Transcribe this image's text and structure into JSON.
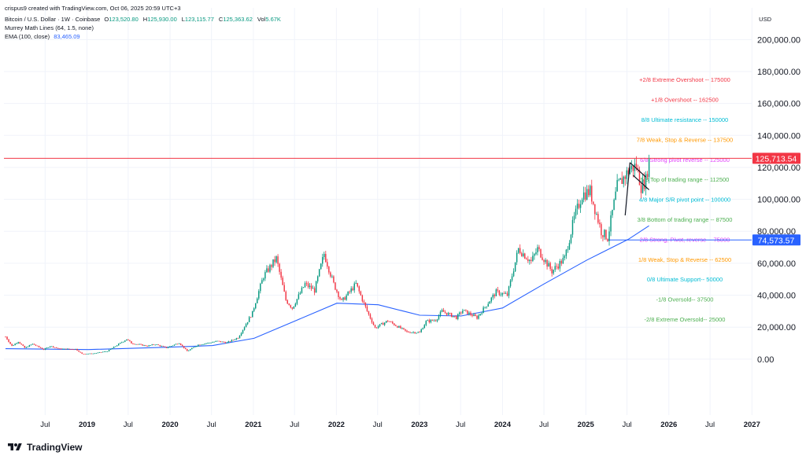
{
  "header": {
    "credit": "crispus9 created with TradingView.com, Oct 06, 2025 20:59 UTC+3",
    "symbol": "Bitcoin / U.S. Dollar · 1W · Coinbase",
    "ohlc": [
      {
        "label": "O",
        "value": "123,520.80"
      },
      {
        "label": "H",
        "value": "125,930.00"
      },
      {
        "label": "L",
        "value": "123,115.77"
      },
      {
        "label": "C",
        "value": "125,363.62"
      },
      {
        "label": "Vol",
        "value": "5.67K"
      }
    ],
    "murrey": "Murrey Math Lines (64, 1.5, none)",
    "ema_label": "EMA (100, close)",
    "ema_value": "83,465.09"
  },
  "currency": "USD",
  "brand": {
    "name": "TradingView"
  },
  "colors": {
    "up": "#089981",
    "down": "#f23645",
    "ema": "#2962ff",
    "resistance_line": "#f23645",
    "support_line": "#2962ff",
    "price_tag_red": "#f23645",
    "price_tag_blue": "#2962ff"
  },
  "chart_data": {
    "type": "candlestick",
    "title": "Bitcoin / U.S. Dollar · 1W · Coinbase",
    "xlim": [
      "2018-01-01",
      "2026-12-31"
    ],
    "ylim": [
      -35000,
      210000
    ],
    "y_ticks": [
      {
        "value": 0,
        "label": "0.00"
      },
      {
        "value": 20000,
        "label": "20,000.00"
      },
      {
        "value": 40000,
        "label": "40,000.00"
      },
      {
        "value": 60000,
        "label": "60,000.00"
      },
      {
        "value": 80000,
        "label": "80,000.00"
      },
      {
        "value": 100000,
        "label": "100,000.00"
      },
      {
        "value": 120000,
        "label": "120,000.00"
      },
      {
        "value": 140000,
        "label": "140,000.00"
      },
      {
        "value": 160000,
        "label": "160,000.00"
      },
      {
        "value": 180000,
        "label": "180,000.00"
      },
      {
        "value": 200000,
        "label": "200,000.00"
      }
    ],
    "x_ticks": [
      {
        "date": "2018-07-01",
        "label": "Jul",
        "bold": false
      },
      {
        "date": "2019-01-01",
        "label": "2019",
        "bold": true
      },
      {
        "date": "2019-07-01",
        "label": "Jul",
        "bold": false
      },
      {
        "date": "2020-01-01",
        "label": "2020",
        "bold": true
      },
      {
        "date": "2020-07-01",
        "label": "Jul",
        "bold": false
      },
      {
        "date": "2021-01-01",
        "label": "2021",
        "bold": true
      },
      {
        "date": "2021-07-01",
        "label": "Jul",
        "bold": false
      },
      {
        "date": "2022-01-01",
        "label": "2022",
        "bold": true
      },
      {
        "date": "2022-07-01",
        "label": "Jul",
        "bold": false
      },
      {
        "date": "2023-01-01",
        "label": "2023",
        "bold": true
      },
      {
        "date": "2023-07-01",
        "label": "Jul",
        "bold": false
      },
      {
        "date": "2024-01-01",
        "label": "2024",
        "bold": true
      },
      {
        "date": "2024-07-01",
        "label": "Jul",
        "bold": false
      },
      {
        "date": "2025-01-01",
        "label": "2025",
        "bold": true
      },
      {
        "date": "2025-07-01",
        "label": "Jul",
        "bold": false
      },
      {
        "date": "2026-01-01",
        "label": "2026",
        "bold": true
      },
      {
        "date": "2026-07-01",
        "label": "Jul",
        "bold": false
      },
      {
        "date": "2027-01-01",
        "label": "2027",
        "bold": true
      }
    ],
    "price_path": [
      [
        "2018-01-08",
        14000
      ],
      [
        "2018-02-05",
        8200
      ],
      [
        "2018-03-05",
        11000
      ],
      [
        "2018-04-02",
        7000
      ],
      [
        "2018-05-07",
        9500
      ],
      [
        "2018-06-25",
        6000
      ],
      [
        "2018-07-23",
        8200
      ],
      [
        "2018-09-03",
        6400
      ],
      [
        "2018-11-12",
        6300
      ],
      [
        "2018-12-10",
        3300
      ],
      [
        "2019-01-28",
        3500
      ],
      [
        "2019-04-01",
        5000
      ],
      [
        "2019-06-24",
        12500
      ],
      [
        "2019-07-15",
        10000
      ],
      [
        "2019-09-23",
        8200
      ],
      [
        "2019-10-28",
        9300
      ],
      [
        "2019-12-16",
        7100
      ],
      [
        "2020-02-10",
        10200
      ],
      [
        "2020-03-16",
        5000
      ],
      [
        "2020-05-04",
        9000
      ],
      [
        "2020-07-27",
        11200
      ],
      [
        "2020-09-07",
        10300
      ],
      [
        "2020-10-26",
        13500
      ],
      [
        "2020-12-28",
        29000
      ],
      [
        "2021-01-11",
        36000
      ],
      [
        "2021-02-15",
        52000
      ],
      [
        "2021-04-12",
        63000
      ],
      [
        "2021-05-24",
        37000
      ],
      [
        "2021-06-21",
        32000
      ],
      [
        "2021-08-16",
        47000
      ],
      [
        "2021-09-27",
        43000
      ],
      [
        "2021-11-08",
        66000
      ],
      [
        "2021-12-20",
        47000
      ],
      [
        "2022-01-24",
        36000
      ],
      [
        "2022-03-28",
        47000
      ],
      [
        "2022-05-16",
        30000
      ],
      [
        "2022-06-20",
        19500
      ],
      [
        "2022-08-15",
        24000
      ],
      [
        "2022-11-07",
        17000
      ],
      [
        "2023-01-02",
        16700
      ],
      [
        "2023-01-30",
        23500
      ],
      [
        "2023-03-13",
        24500
      ],
      [
        "2023-04-10",
        30000
      ],
      [
        "2023-06-12",
        26000
      ],
      [
        "2023-07-10",
        30500
      ],
      [
        "2023-09-11",
        26000
      ],
      [
        "2023-10-23",
        34000
      ],
      [
        "2023-12-04",
        42000
      ],
      [
        "2024-01-22",
        40000
      ],
      [
        "2024-03-11",
        69000
      ],
      [
        "2024-05-06",
        61000
      ],
      [
        "2024-06-03",
        69000
      ],
      [
        "2024-08-05",
        55000
      ],
      [
        "2024-09-30",
        63000
      ],
      [
        "2024-11-11",
        88000
      ],
      [
        "2024-12-16",
        103000
      ],
      [
        "2025-01-20",
        105000
      ],
      [
        "2025-03-10",
        80000
      ],
      [
        "2025-04-07",
        76000
      ],
      [
        "2025-05-19",
        108000
      ],
      [
        "2025-07-14",
        119000
      ],
      [
        "2025-08-11",
        121000
      ],
      [
        "2025-09-01",
        108000
      ],
      [
        "2025-09-22",
        112000
      ],
      [
        "2025-10-06",
        125363
      ]
    ],
    "ema_path": [
      [
        "2018-01-08",
        6500
      ],
      [
        "2019-01-07",
        6000
      ],
      [
        "2020-01-06",
        7500
      ],
      [
        "2020-07-06",
        8500
      ],
      [
        "2021-01-04",
        13000
      ],
      [
        "2021-07-05",
        24000
      ],
      [
        "2022-01-03",
        35000
      ],
      [
        "2022-07-04",
        34000
      ],
      [
        "2023-01-02",
        27500
      ],
      [
        "2023-07-03",
        27000
      ],
      [
        "2024-01-01",
        32000
      ],
      [
        "2024-07-01",
        47000
      ],
      [
        "2025-01-06",
        62000
      ],
      [
        "2025-07-07",
        75000
      ],
      [
        "2025-10-06",
        83465
      ]
    ],
    "murrey_levels": [
      {
        "label": "+2/8 Extreme Overshoot --  175000",
        "value": 175000,
        "color": "#f23645"
      },
      {
        "label": "+1/8 Overshoot --  162500",
        "value": 162500,
        "color": "#f23645"
      },
      {
        "label": "8/8 Ultimate resistance --  150000",
        "value": 150000,
        "color": "#00bcd4"
      },
      {
        "label": "7/8 Weak, Stop & Reverse --  137500",
        "value": 137500,
        "color": "#ff9800"
      },
      {
        "label": "6/8 Strong pivot reverse --  125000",
        "value": 125000,
        "color": "#e040fb"
      },
      {
        "label": "5/8 Top of trading range --  112500",
        "value": 112500,
        "color": "#4caf50"
      },
      {
        "label": "4/8 Major S/R pivot point --  100000",
        "value": 100000,
        "color": "#00bcd4"
      },
      {
        "label": "3/8 Bottom of trading range --  87500",
        "value": 87500,
        "color": "#4caf50"
      },
      {
        "label": "2/8 Strong, Pivot, reverse --  75000",
        "value": 75000,
        "color": "#e040fb"
      },
      {
        "label": "1/8 Weak, Stop & Reverse --  62500",
        "value": 62500,
        "color": "#ff9800"
      },
      {
        "label": "0/8 Ultimate Support--  50000",
        "value": 50000,
        "color": "#00bcd4"
      },
      {
        "label": "-1/8 Oversold--  37500",
        "value": 37500,
        "color": "#4caf50"
      },
      {
        "label": "-2/8 Extreme Oversold--  25000",
        "value": 25000,
        "color": "#4caf50"
      }
    ],
    "horizontal_lines": [
      {
        "name": "resistance",
        "value": 125713.54,
        "label": "125,713.54",
        "from": "2018-01-01",
        "color": "#f23645"
      },
      {
        "name": "support",
        "value": 74573.57,
        "label": "74,573.57",
        "from": "2025-04-07",
        "color": "#2962ff"
      }
    ],
    "drawings": [
      {
        "name": "flag-upper",
        "from": [
          "2025-07-14",
          123000
        ],
        "to": [
          "2025-09-22",
          114000
        ]
      },
      {
        "name": "flag-lower",
        "from": [
          "2025-07-28",
          115000
        ],
        "to": [
          "2025-10-06",
          106000
        ]
      },
      {
        "name": "flagpole",
        "from": [
          "2025-06-23",
          90000
        ],
        "to": [
          "2025-07-14",
          123000
        ]
      }
    ]
  }
}
